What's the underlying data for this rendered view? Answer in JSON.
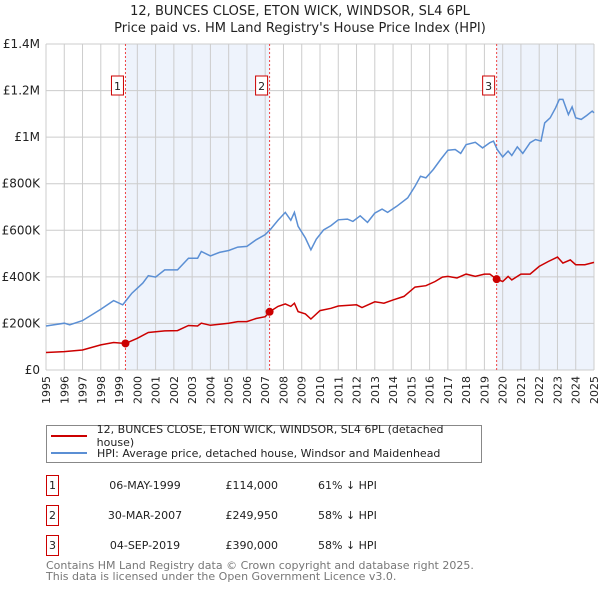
{
  "title": "12, BUNCES CLOSE, ETON WICK, WINDSOR, SL4 6PL",
  "subtitle": "Price paid vs. HM Land Registry's House Price Index (HPI)",
  "colors": {
    "property": "#cc0000",
    "hpi": "#5b8fd4",
    "shade": "#eef3fc",
    "grid": "#cccccc"
  },
  "chart_data": {
    "type": "line",
    "title": "Price paid vs. HM Land Registry's House Price Index (HPI)",
    "ylim": [
      0,
      1400000
    ],
    "xlim": [
      1995,
      2025
    ],
    "y_ticks": [
      0,
      200000,
      400000,
      600000,
      800000,
      1000000,
      1200000,
      1400000
    ],
    "y_tick_labels": [
      "£0",
      "£200K",
      "£400K",
      "£600K",
      "£800K",
      "£1M",
      "£1.2M",
      "£1.4M"
    ],
    "x_tick_labels": [
      "1995",
      "1996",
      "1997",
      "1998",
      "1999",
      "2000",
      "2001",
      "2002",
      "2003",
      "2004",
      "2005",
      "2006",
      "2007",
      "2008",
      "2009",
      "2010",
      "2011",
      "2012",
      "2013",
      "2014",
      "2015",
      "2016",
      "2017",
      "2018",
      "2019",
      "2020",
      "2021",
      "2022",
      "2023",
      "2024",
      "2025"
    ],
    "grid": true,
    "series": [
      {
        "name": "12, BUNCES CLOSE, ETON WICK, WINDSOR, SL4 6PL (detached house)",
        "color": "#cc0000",
        "x": [
          1995,
          1996,
          1997,
          1998,
          1998.7,
          1999.35,
          2000,
          2000.6,
          2001.5,
          2002.2,
          2002.8,
          2003.3,
          2003.5,
          2004,
          2005,
          2005.5,
          2006,
          2006.5,
          2007,
          2007.24,
          2007.7,
          2008.1,
          2008.4,
          2008.6,
          2008.8,
          2009.2,
          2009.5,
          2010,
          2010.6,
          2011,
          2012,
          2012.3,
          2013,
          2013.5,
          2014,
          2014.6,
          2015.2,
          2015.8,
          2016.3,
          2016.7,
          2017,
          2017.5,
          2018,
          2018.5,
          2019,
          2019.3,
          2019.67,
          2020,
          2020.3,
          2020.5,
          2021,
          2021.5,
          2022,
          2022.5,
          2023,
          2023.3,
          2023.7,
          2024,
          2024.5,
          2025
        ],
        "y": [
          75000,
          79000,
          86000,
          108000,
          118000,
          114000,
          136000,
          161000,
          168000,
          169000,
          191000,
          189000,
          201000,
          192000,
          201000,
          208000,
          208000,
          221000,
          229000,
          249950,
          273000,
          284000,
          273000,
          287000,
          251000,
          241000,
          219000,
          255000,
          265000,
          275000,
          280000,
          268000,
          293000,
          287000,
          301000,
          316000,
          356000,
          362000,
          380000,
          399000,
          402000,
          395000,
          412000,
          402000,
          412000,
          412000,
          390000,
          380000,
          402000,
          387000,
          412000,
          412000,
          445000,
          466000,
          485000,
          459000,
          473000,
          452000,
          452000,
          462000
        ]
      },
      {
        "name": "HPI: Average price, detached house, Windsor and Maidenhead",
        "color": "#5b8fd4",
        "x": [
          1995,
          1996,
          1996.3,
          1997,
          1998,
          1998.7,
          1999.2,
          1999.7,
          2000.3,
          2000.6,
          2001,
          2001.5,
          2002.2,
          2002.8,
          2003.3,
          2003.5,
          2004,
          2004.5,
          2005,
          2005.5,
          2006,
          2006.5,
          2007,
          2007.3,
          2007.7,
          2008.1,
          2008.4,
          2008.6,
          2008.8,
          2009.2,
          2009.5,
          2009.8,
          2010.2,
          2010.6,
          2011,
          2011.5,
          2011.8,
          2012.2,
          2012.6,
          2013,
          2013.4,
          2013.7,
          2014.2,
          2014.8,
          2015.2,
          2015.5,
          2015.8,
          2016.2,
          2016.6,
          2017,
          2017.4,
          2017.7,
          2018,
          2018.5,
          2018.9,
          2019.3,
          2019.5,
          2019.7,
          2020,
          2020.3,
          2020.5,
          2020.8,
          2021.1,
          2021.5,
          2021.8,
          2022.1,
          2022.3,
          2022.6,
          2022.9,
          2023.1,
          2023.3,
          2023.6,
          2023.8,
          2024,
          2024.3,
          2024.6,
          2024.9,
          2025
        ],
        "y": [
          189000,
          201000,
          194000,
          212000,
          261000,
          298000,
          280000,
          330000,
          373000,
          405000,
          399000,
          430000,
          430000,
          480000,
          480000,
          509000,
          490000,
          505000,
          513000,
          528000,
          531000,
          559000,
          581000,
          605000,
          643000,
          677000,
          643000,
          677000,
          617000,
          567000,
          516000,
          562000,
          602000,
          620000,
          645000,
          648000,
          638000,
          662000,
          634000,
          674000,
          691000,
          677000,
          703000,
          739000,
          789000,
          832000,
          825000,
          861000,
          904000,
          944000,
          947000,
          930000,
          968000,
          978000,
          954000,
          976000,
          983000,
          947000,
          915000,
          940000,
          921000,
          958000,
          930000,
          976000,
          990000,
          983000,
          1061000,
          1083000,
          1126000,
          1162000,
          1162000,
          1097000,
          1130000,
          1083000,
          1076000,
          1093000,
          1112000,
          1104000
        ]
      }
    ],
    "sales": [
      {
        "label": "1",
        "x": 1999.35,
        "y": 114000
      },
      {
        "label": "2",
        "x": 2007.24,
        "y": 249950
      },
      {
        "label": "3",
        "x": 2019.67,
        "y": 390000
      }
    ],
    "shaded_ranges": [
      [
        1999.35,
        2007.24
      ],
      [
        2019.67,
        2025
      ]
    ],
    "legend_position": "below"
  },
  "legend": {
    "property": "12, BUNCES CLOSE, ETON WICK, WINDSOR, SL4 6PL (detached house)",
    "hpi": "HPI: Average price, detached house, Windsor and Maidenhead"
  },
  "transactions": [
    {
      "num": "1",
      "date": "06-MAY-1999",
      "price": "£114,000",
      "hpi": "61% ↓ HPI"
    },
    {
      "num": "2",
      "date": "30-MAR-2007",
      "price": "£249,950",
      "hpi": "58% ↓ HPI"
    },
    {
      "num": "3",
      "date": "04-SEP-2019",
      "price": "£390,000",
      "hpi": "58% ↓ HPI"
    }
  ],
  "footer": {
    "line1": "Contains HM Land Registry data © Crown copyright and database right 2025.",
    "line2": "This data is licensed under the Open Government Licence v3.0."
  }
}
